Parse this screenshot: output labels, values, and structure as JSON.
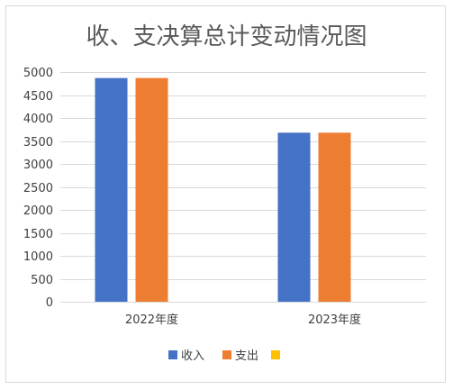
{
  "chart_data": {
    "type": "bar",
    "title": "收、支决算总计变动情况图",
    "categories": [
      "2022年度",
      "2023年度"
    ],
    "series": [
      {
        "name": "收入",
        "values": [
          4870,
          3680
        ],
        "color": "#4472C4"
      },
      {
        "name": "支出",
        "values": [
          4870,
          3680
        ],
        "color": "#ED7D31"
      },
      {
        "name": "",
        "values": [
          0,
          0
        ],
        "color": "#FFC000"
      }
    ],
    "ylim": [
      0,
      5000
    ],
    "yticks": [
      0,
      500,
      1000,
      1500,
      2000,
      2500,
      3000,
      3500,
      4000,
      4500,
      5000
    ],
    "grid": true,
    "legend_position": "bottom",
    "xlabel": "",
    "ylabel": ""
  }
}
